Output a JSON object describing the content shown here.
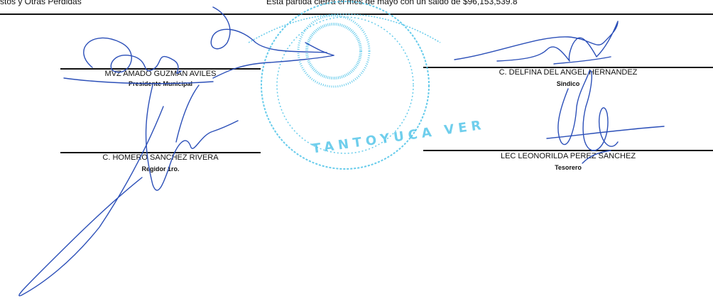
{
  "header": {
    "left_text": "stos y Otras Perdidas",
    "right_text": "Esta partida cierra el mes de mayo con un saldo de $96,153,539.8"
  },
  "signatures": [
    {
      "name": "MVZ AMADO GUZMAN AVILES",
      "title": "Presidente Municipal"
    },
    {
      "name": "C. DELFINA DEL ANGEL HERNANDEZ",
      "title": "Sindico"
    },
    {
      "name": "C. HOMERO SANCHEZ RIVERA",
      "title": "Regidor 1ro."
    },
    {
      "name": "LEC LEONORILDA PEREZ SANCHEZ",
      "title": "Tesorero"
    }
  ],
  "seal": {
    "text": "TANTOYUCA VER"
  },
  "colors": {
    "ink": "#2b4fb8",
    "seal": "#4cc3e8",
    "text": "#111111"
  }
}
